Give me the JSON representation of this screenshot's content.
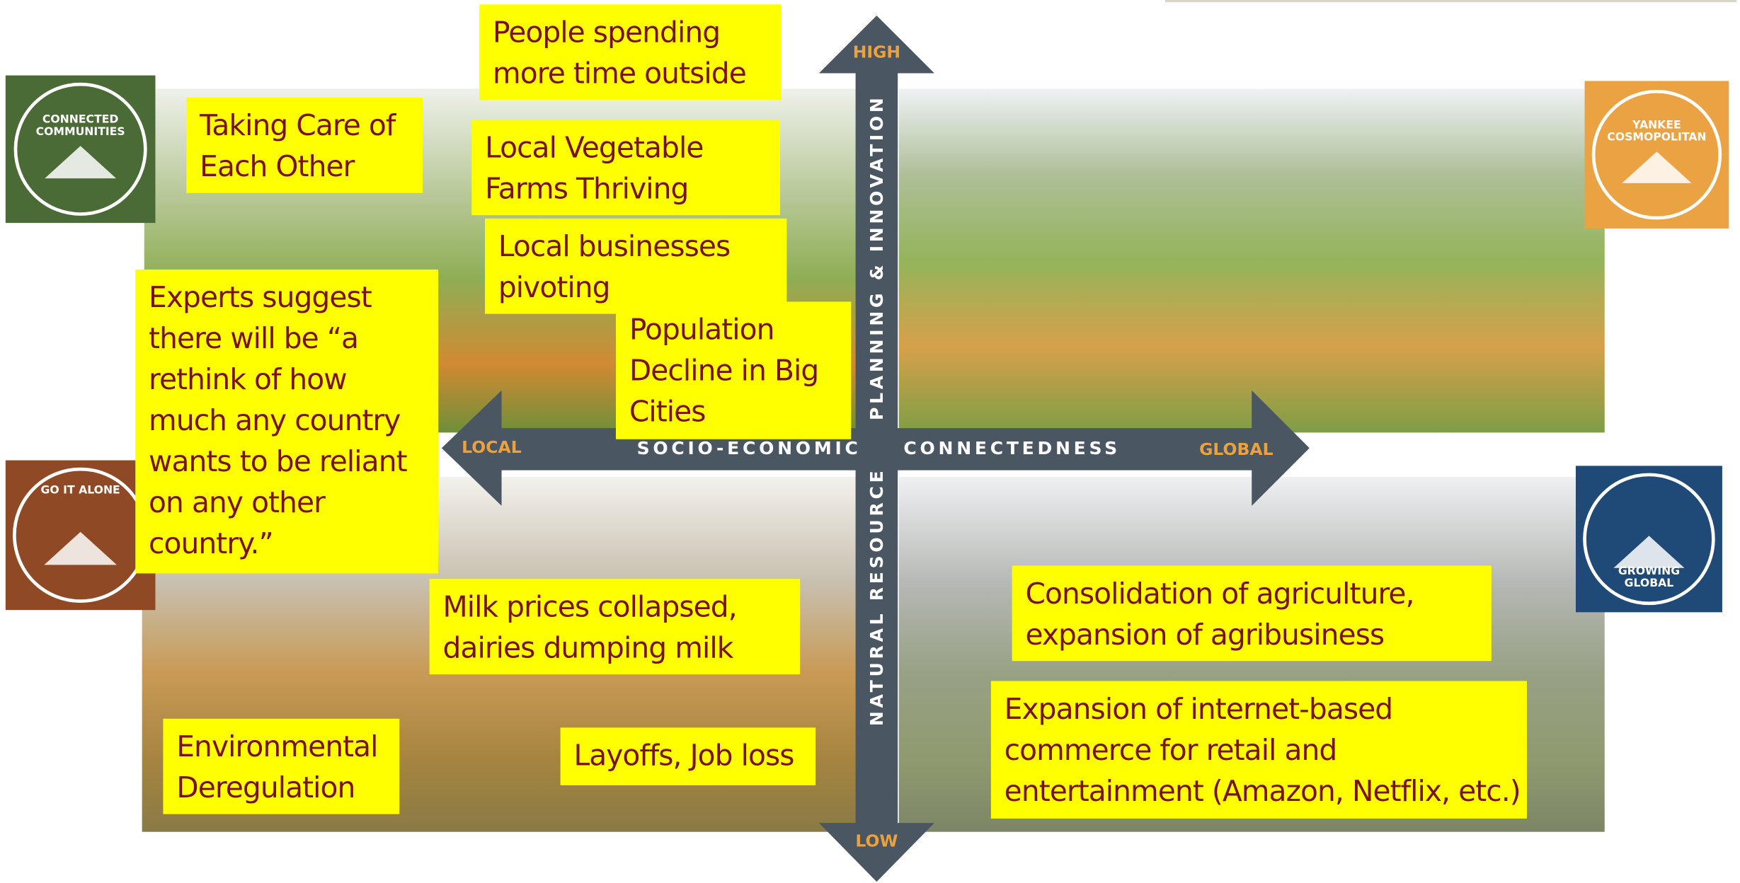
{
  "axes": {
    "high": "HIGH",
    "low": "LOW",
    "local": "LOCAL",
    "global": "GLOBAL",
    "horizontal": [
      "SOCIO-ECONOMIC",
      "CONNECTEDNESS"
    ],
    "vertical": [
      "NATURAL RESOURCE",
      "PLANNING & INNOVATION"
    ]
  },
  "badges": [
    {
      "lines": [
        "CONNECTED",
        "COMMUNITIES"
      ]
    },
    {
      "lines": [
        "YANKEE",
        "COSMOPOLITAN"
      ]
    },
    {
      "lines": [
        "GO IT ALONE"
      ]
    },
    {
      "lines": [
        "GROWING",
        "GLOBAL"
      ]
    }
  ],
  "notes": [
    {
      "lines": [
        "People spending",
        "more time outside"
      ]
    },
    {
      "lines": [
        "Taking Care of",
        "Each Other"
      ]
    },
    {
      "lines": [
        "Local Vegetable",
        "Farms Thriving"
      ]
    },
    {
      "lines": [
        "Local businesses",
        "pivoting"
      ]
    },
    {
      "lines": [
        "Population",
        "Decline in Big",
        "Cities"
      ]
    },
    {
      "lines": [
        "Experts suggest",
        "there will be “a",
        "rethink of how",
        "much any country",
        "wants to be reliant",
        "on any other",
        "country.”"
      ]
    },
    {
      "lines": [
        "Milk prices collapsed,",
        "dairies dumping milk"
      ]
    },
    {
      "lines": [
        "Environmental",
        "Deregulation"
      ]
    },
    {
      "lines": [
        "Layoffs, Job loss"
      ]
    },
    {
      "lines": [
        "Consolidation of agriculture,",
        "expansion of agribusiness"
      ]
    },
    {
      "lines": [
        "Expansion of internet-based",
        "commerce for retail and",
        "entertainment (Amazon, Netflix, etc.)"
      ]
    }
  ]
}
